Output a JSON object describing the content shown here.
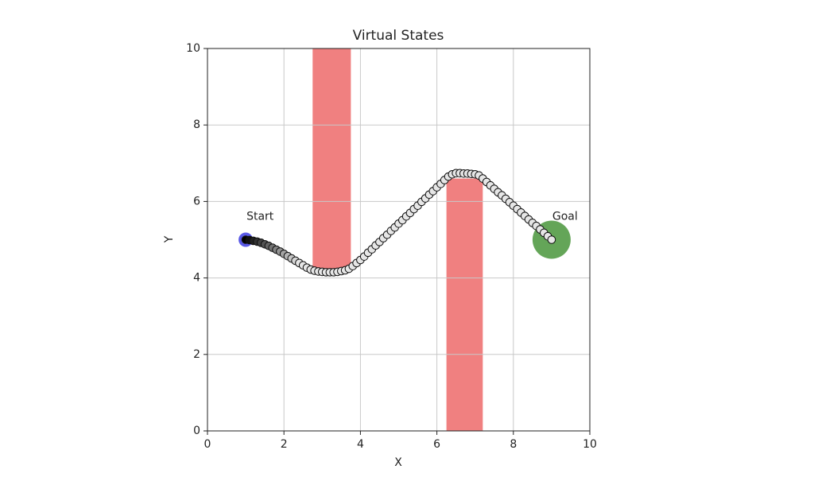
{
  "chart_data": {
    "type": "trajectory",
    "title": "Virtual States",
    "xlabel": "X",
    "ylabel": "Y",
    "xlim": [
      0,
      10
    ],
    "ylim": [
      0,
      10
    ],
    "xticks": [
      0,
      2,
      4,
      6,
      8,
      10
    ],
    "yticks": [
      0,
      2,
      4,
      6,
      8,
      10
    ],
    "grid": true,
    "obstacles": [
      {
        "x": [
          2.75,
          3.75
        ],
        "y": [
          4.2,
          10
        ],
        "color": "#f08080"
      },
      {
        "x": [
          6.25,
          7.2
        ],
        "y": [
          0,
          6.6
        ],
        "color": "#f08080"
      }
    ],
    "start": {
      "label": "Start",
      "x": 1,
      "y": 5,
      "color": "#3030e0"
    },
    "goal": {
      "label": "Goal",
      "x": 9,
      "y": 5,
      "color": "#3d8f2e"
    },
    "trajectory": {
      "marker_fill": "#e6e6e6",
      "marker_edge": "#111111",
      "x": [
        1.0,
        1.1,
        1.2,
        1.3,
        1.4,
        1.5,
        1.6,
        1.7,
        1.8,
        1.9,
        2.0,
        2.1,
        2.2,
        2.3,
        2.4,
        2.5,
        2.6,
        2.7,
        2.8,
        2.9,
        3.0,
        3.1,
        3.2,
        3.3,
        3.4,
        3.5,
        3.6,
        3.7,
        3.8,
        3.9,
        4.0,
        4.1,
        4.2,
        4.3,
        4.4,
        4.5,
        4.6,
        4.7,
        4.8,
        4.9,
        5.0,
        5.1,
        5.2,
        5.3,
        5.4,
        5.5,
        5.6,
        5.7,
        5.8,
        5.9,
        6.0,
        6.1,
        6.2,
        6.3,
        6.4,
        6.5,
        6.6,
        6.7,
        6.8,
        6.9,
        7.0,
        7.1,
        7.2,
        7.3,
        7.4,
        7.5,
        7.6,
        7.7,
        7.8,
        7.9,
        8.0,
        8.1,
        8.2,
        8.3,
        8.4,
        8.5,
        8.6,
        8.7,
        8.8,
        8.9,
        9.0
      ],
      "y": [
        5.0,
        4.99,
        4.97,
        4.95,
        4.92,
        4.88,
        4.84,
        4.79,
        4.74,
        4.69,
        4.63,
        4.57,
        4.51,
        4.45,
        4.39,
        4.33,
        4.27,
        4.22,
        4.19,
        4.17,
        4.16,
        4.15,
        4.15,
        4.15,
        4.16,
        4.18,
        4.2,
        4.24,
        4.31,
        4.39,
        4.47,
        4.56,
        4.66,
        4.75,
        4.85,
        4.94,
        5.04,
        5.13,
        5.23,
        5.32,
        5.42,
        5.51,
        5.61,
        5.7,
        5.8,
        5.89,
        5.99,
        6.08,
        6.18,
        6.27,
        6.37,
        6.46,
        6.56,
        6.65,
        6.71,
        6.74,
        6.74,
        6.73,
        6.73,
        6.72,
        6.71,
        6.68,
        6.6,
        6.51,
        6.42,
        6.33,
        6.24,
        6.16,
        6.07,
        5.98,
        5.89,
        5.8,
        5.71,
        5.62,
        5.53,
        5.44,
        5.36,
        5.27,
        5.18,
        5.09,
        5.0
      ]
    }
  }
}
